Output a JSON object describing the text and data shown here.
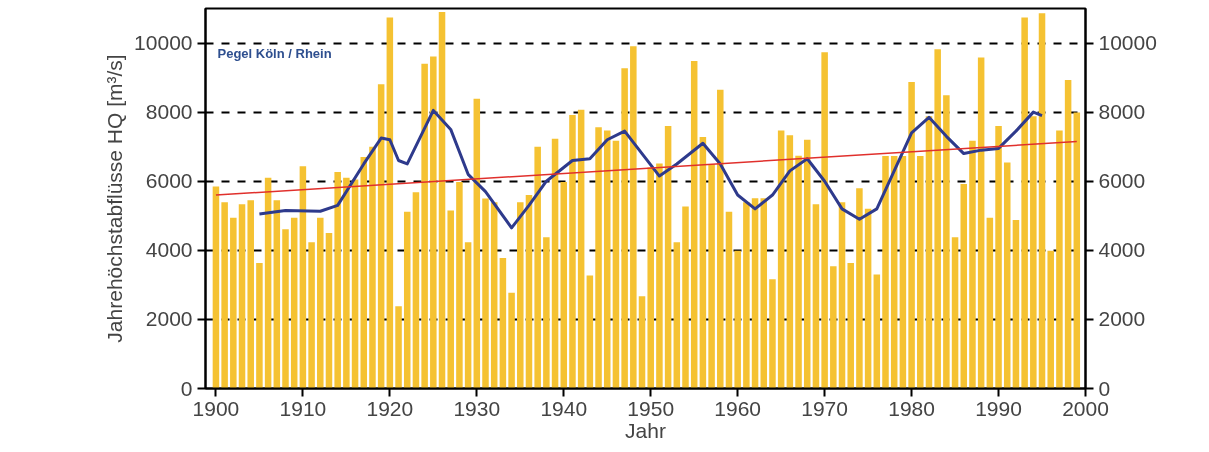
{
  "chart_data": {
    "type": "bar",
    "xlabel": "Jahr",
    "ylabel": "Jahrehöchstabflüsse HQ [m³/s]",
    "annotations": [
      "Pegel Köln / Rhein"
    ],
    "x": [
      1900,
      1901,
      1902,
      1903,
      1904,
      1905,
      1906,
      1907,
      1908,
      1909,
      1910,
      1911,
      1912,
      1913,
      1914,
      1915,
      1916,
      1917,
      1918,
      1919,
      1920,
      1921,
      1922,
      1923,
      1924,
      1925,
      1926,
      1927,
      1928,
      1929,
      1930,
      1931,
      1932,
      1933,
      1934,
      1935,
      1936,
      1937,
      1938,
      1939,
      1940,
      1941,
      1942,
      1943,
      1944,
      1945,
      1946,
      1947,
      1948,
      1949,
      1950,
      1951,
      1952,
      1953,
      1954,
      1955,
      1956,
      1957,
      1958,
      1959,
      1960,
      1961,
      1962,
      1963,
      1964,
      1965,
      1966,
      1967,
      1968,
      1969,
      1970,
      1971,
      1972,
      1973,
      1974,
      1975,
      1976,
      1977,
      1978,
      1979,
      1980,
      1981,
      1982,
      1983,
      1984,
      1985,
      1986,
      1987,
      1988,
      1989,
      1990,
      1991,
      1992,
      1993,
      1994,
      1995,
      1996,
      1997,
      1998,
      1999
    ],
    "series": [
      {
        "color": "#f5c232",
        "values": [
          5850,
          5390,
          4940,
          5330,
          5450,
          3630,
          6100,
          5450,
          4610,
          4940,
          6430,
          4230,
          4940,
          4500,
          6270,
          6100,
          6050,
          6700,
          7000,
          8810,
          10740,
          2380,
          5120,
          5680,
          9400,
          9610,
          10900,
          5150,
          5980,
          4230,
          8390,
          5500,
          5390,
          3780,
          2770,
          5390,
          5600,
          7000,
          4380,
          7230,
          5980,
          7920,
          8070,
          3270,
          7560,
          7470,
          7170,
          9270,
          9910,
          2670,
          6400,
          6510,
          7600,
          4230,
          5270,
          9480,
          7280,
          6490,
          8650,
          5120,
          3990,
          5390,
          5510,
          5510,
          3160,
          7470,
          7330,
          6740,
          7200,
          5330,
          9730,
          3540,
          5390,
          3630,
          5800,
          5200,
          3300,
          6730,
          6730,
          6730,
          8870,
          6730,
          7880,
          9820,
          8490,
          4380,
          5920,
          7170,
          9580,
          4940,
          7600,
          6540,
          4880,
          10740,
          7880,
          10860,
          3990,
          7470,
          8930,
          7990
        ]
      },
      {
        "type": "line",
        "color": "#2e3a8c",
        "x": [
          1905,
          1908,
          1912,
          1914,
          1917,
          1919,
          1920,
          1921,
          1922,
          1925,
          1927,
          1929,
          1931,
          1934,
          1936,
          1938,
          1941,
          1943,
          1945,
          1947,
          1949,
          1951,
          1953,
          1956,
          1958,
          1960,
          1962,
          1964,
          1966,
          1968,
          1970,
          1972,
          1974,
          1976,
          1978,
          1980,
          1982,
          1984,
          1986,
          1988,
          1990,
          1992,
          1994,
          1995
        ],
        "values": [
          5050,
          5150,
          5130,
          5300,
          6500,
          7250,
          7200,
          6600,
          6500,
          8050,
          7500,
          6200,
          5700,
          4650,
          5300,
          6000,
          6600,
          6650,
          7200,
          7450,
          6800,
          6150,
          6500,
          7100,
          6500,
          5600,
          5200,
          5600,
          6300,
          6650,
          6000,
          5200,
          4900,
          5200,
          6300,
          7400,
          7850,
          7300,
          6800,
          6900,
          6950,
          7450,
          8000,
          7900
        ]
      },
      {
        "type": "line",
        "color": "#e0302c",
        "x": [
          1900,
          1999
        ],
        "values": [
          5600,
          7150
        ]
      }
    ],
    "xlim": [
      1898.8,
      2000
    ],
    "xticks": [
      1900,
      1910,
      1920,
      1930,
      1940,
      1950,
      1960,
      1970,
      1980,
      1990,
      2000
    ],
    "ylim": [
      0,
      11000
    ],
    "yticks": [
      0,
      2000,
      4000,
      6000,
      8000,
      10000
    ],
    "y2lim": [
      0,
      11000
    ],
    "y2ticks": [
      0,
      2000,
      4000,
      6000,
      8000,
      10000
    ],
    "grid": "y",
    "marker": "none"
  }
}
